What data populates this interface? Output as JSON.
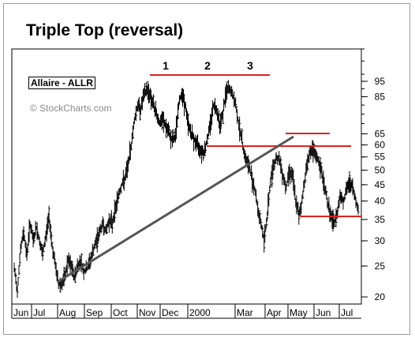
{
  "chart_data": {
    "type": "bar",
    "subtype": "ohlc-price",
    "title": "Triple Top (reversal)",
    "symbol": "Allaire - ALLR",
    "watermark": "© StockCharts.com",
    "y_scale": "log",
    "ylim": [
      19,
      120
    ],
    "y_ticks": [
      20,
      25,
      30,
      35,
      40,
      45,
      50,
      55,
      60,
      65,
      85,
      95
    ],
    "x_ticks": [
      "Jun",
      "Jul",
      "Aug",
      "Sep",
      "Oct",
      "Nov",
      "Dec",
      "2000",
      "Mar",
      "Apr",
      "May",
      "Jun",
      "Jul"
    ],
    "grid": false,
    "peak_labels": [
      "1",
      "2",
      "3"
    ],
    "colors": {
      "price_bars": "#000000",
      "resistance": "#e02020",
      "trendline": "#555555"
    },
    "price_path": [
      [
        0,
        24.5
      ],
      [
        4,
        21
      ],
      [
        8,
        28
      ],
      [
        12,
        32
      ],
      [
        16,
        27
      ],
      [
        20,
        34
      ],
      [
        24,
        30
      ],
      [
        28,
        33
      ],
      [
        32,
        30
      ],
      [
        36,
        27
      ],
      [
        40,
        31
      ],
      [
        44,
        36
      ],
      [
        48,
        29
      ],
      [
        52,
        25
      ],
      [
        56,
        22
      ],
      [
        60,
        22
      ],
      [
        64,
        23
      ],
      [
        68,
        26
      ],
      [
        72,
        25
      ],
      [
        76,
        23
      ],
      [
        80,
        25
      ],
      [
        84,
        26
      ],
      [
        88,
        24
      ],
      [
        92,
        24.5
      ],
      [
        96,
        26
      ],
      [
        100,
        28
      ],
      [
        104,
        30
      ],
      [
        108,
        32
      ],
      [
        112,
        34
      ],
      [
        116,
        32
      ],
      [
        120,
        35
      ],
      [
        124,
        34
      ],
      [
        128,
        38
      ],
      [
        132,
        42
      ],
      [
        136,
        45
      ],
      [
        140,
        47
      ],
      [
        144,
        52
      ],
      [
        148,
        60
      ],
      [
        152,
        72
      ],
      [
        156,
        80
      ],
      [
        160,
        78
      ],
      [
        164,
        86
      ],
      [
        168,
        90
      ],
      [
        172,
        86
      ],
      [
        176,
        80
      ],
      [
        180,
        75
      ],
      [
        184,
        70
      ],
      [
        188,
        72
      ],
      [
        192,
        68
      ],
      [
        196,
        65
      ],
      [
        200,
        62
      ],
      [
        204,
        64
      ],
      [
        208,
        80
      ],
      [
        212,
        88
      ],
      [
        216,
        80
      ],
      [
        220,
        70
      ],
      [
        224,
        65
      ],
      [
        228,
        62
      ],
      [
        232,
        60
      ],
      [
        236,
        58
      ],
      [
        240,
        57
      ],
      [
        244,
        62
      ],
      [
        248,
        70
      ],
      [
        252,
        80
      ],
      [
        256,
        78
      ],
      [
        260,
        70
      ],
      [
        264,
        75
      ],
      [
        268,
        88
      ],
      [
        272,
        90
      ],
      [
        276,
        86
      ],
      [
        280,
        80
      ],
      [
        284,
        70
      ],
      [
        288,
        62
      ],
      [
        292,
        55
      ],
      [
        296,
        52
      ],
      [
        300,
        48
      ],
      [
        304,
        44
      ],
      [
        308,
        38
      ],
      [
        312,
        34
      ],
      [
        316,
        30
      ],
      [
        320,
        36
      ],
      [
        324,
        46
      ],
      [
        328,
        52
      ],
      [
        332,
        55
      ],
      [
        336,
        53
      ],
      [
        340,
        48
      ],
      [
        344,
        44
      ],
      [
        348,
        50
      ],
      [
        352,
        48
      ],
      [
        356,
        40
      ],
      [
        360,
        36
      ],
      [
        364,
        40
      ],
      [
        368,
        48
      ],
      [
        372,
        55
      ],
      [
        376,
        58
      ],
      [
        380,
        56
      ],
      [
        384,
        54
      ],
      [
        388,
        50
      ],
      [
        392,
        45
      ],
      [
        396,
        40
      ],
      [
        400,
        36
      ],
      [
        404,
        34
      ],
      [
        408,
        36
      ],
      [
        412,
        42
      ],
      [
        416,
        40
      ],
      [
        420,
        43
      ],
      [
        424,
        46
      ],
      [
        428,
        44
      ],
      [
        432,
        40
      ],
      [
        436,
        37
      ]
    ]
  }
}
